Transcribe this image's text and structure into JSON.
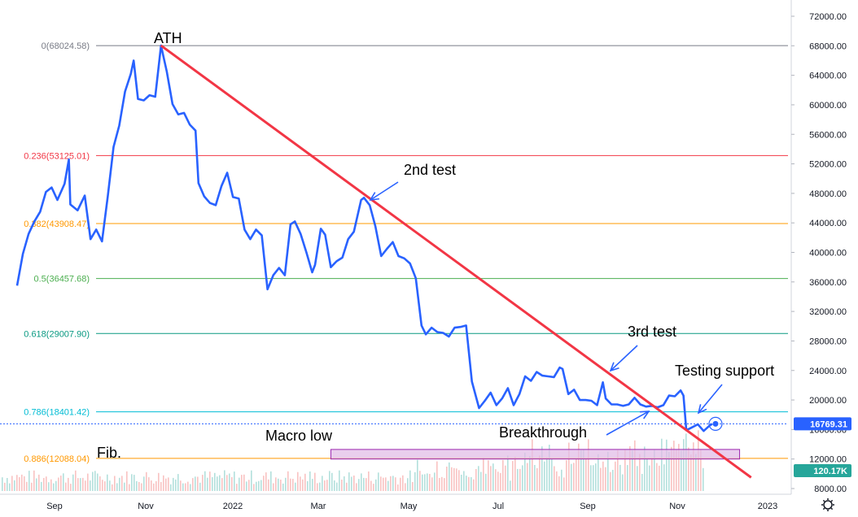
{
  "chart_data": {
    "type": "line",
    "symbol_unit": "USD",
    "y_axis": {
      "ticks": [
        "72000.00",
        "68000.00",
        "64000.00",
        "60000.00",
        "56000.00",
        "52000.00",
        "48000.00",
        "44000.00",
        "40000.00",
        "36000.00",
        "32000.00",
        "28000.00",
        "24000.00",
        "20000.00",
        "16000.00",
        "12000.00",
        "8000.00"
      ],
      "range": [
        7000,
        73500
      ]
    },
    "x_axis": {
      "ticks": [
        "Sep",
        "Nov",
        "2022",
        "Mar",
        "May",
        "Jul",
        "Sep",
        "Nov",
        "2023"
      ]
    },
    "fib_levels": [
      {
        "label": "0(68024.58)",
        "value": 68024.58,
        "color": "#787b86"
      },
      {
        "label": "0.236(53125.01)",
        "value": 53125.01,
        "color": "#f23645"
      },
      {
        "label": "0.382(43908.47)",
        "value": 43908.47,
        "color": "#ff9800"
      },
      {
        "label": "0.5(36457.68)",
        "value": 36457.68,
        "color": "#4caf50"
      },
      {
        "label": "0.618(29007.90)",
        "value": 29007.9,
        "color": "#089981"
      },
      {
        "label": "0.786(18401.42)",
        "value": 18401.42,
        "color": "#00bcd4"
      },
      {
        "label": "0.886(12088.04)",
        "value": 12088.04,
        "color": "#ff9800"
      }
    ],
    "series": [
      {
        "color": "#2962ff",
        "values": [
          [
            "2021-08-01",
            35500
          ],
          [
            "2021-08-05",
            39800
          ],
          [
            "2021-08-09",
            42500
          ],
          [
            "2021-08-13",
            44200
          ],
          [
            "2021-08-17",
            45500
          ],
          [
            "2021-08-21",
            48200
          ],
          [
            "2021-08-25",
            48800
          ],
          [
            "2021-08-29",
            47100
          ],
          [
            "2021-09-03",
            49300
          ],
          [
            "2021-09-06",
            52600
          ],
          [
            "2021-09-07",
            46500
          ],
          [
            "2021-09-12",
            45700
          ],
          [
            "2021-09-17",
            47700
          ],
          [
            "2021-09-21",
            41800
          ],
          [
            "2021-09-25",
            43100
          ],
          [
            "2021-09-29",
            41500
          ],
          [
            "2021-10-03",
            47600
          ],
          [
            "2021-10-07",
            54300
          ],
          [
            "2021-10-11",
            57200
          ],
          [
            "2021-10-15",
            61800
          ],
          [
            "2021-10-19",
            64200
          ],
          [
            "2021-10-21",
            66000
          ],
          [
            "2021-10-24",
            60800
          ],
          [
            "2021-10-28",
            60600
          ],
          [
            "2021-11-01",
            61300
          ],
          [
            "2021-11-05",
            61100
          ],
          [
            "2021-11-09",
            68024
          ],
          [
            "2021-11-13",
            64500
          ],
          [
            "2021-11-17",
            60100
          ],
          [
            "2021-11-21",
            58700
          ],
          [
            "2021-11-25",
            58900
          ],
          [
            "2021-11-29",
            57300
          ],
          [
            "2021-12-03",
            56500
          ],
          [
            "2021-12-05",
            49400
          ],
          [
            "2021-12-09",
            47600
          ],
          [
            "2021-12-13",
            46700
          ],
          [
            "2021-12-17",
            46400
          ],
          [
            "2021-12-21",
            49000
          ],
          [
            "2021-12-25",
            50800
          ],
          [
            "2021-12-29",
            47500
          ],
          [
            "2022-01-02",
            47300
          ],
          [
            "2022-01-06",
            43100
          ],
          [
            "2022-01-10",
            41800
          ],
          [
            "2022-01-14",
            43100
          ],
          [
            "2022-01-18",
            42300
          ],
          [
            "2022-01-22",
            35000
          ],
          [
            "2022-01-26",
            36900
          ],
          [
            "2022-01-30",
            37900
          ],
          [
            "2022-02-03",
            36900
          ],
          [
            "2022-02-07",
            43800
          ],
          [
            "2022-02-10",
            44200
          ],
          [
            "2022-02-14",
            42500
          ],
          [
            "2022-02-18",
            40000
          ],
          [
            "2022-02-22",
            37300
          ],
          [
            "2022-02-24",
            38300
          ],
          [
            "2022-02-28",
            43200
          ],
          [
            "2022-03-03",
            42400
          ],
          [
            "2022-03-07",
            38000
          ],
          [
            "2022-03-11",
            38800
          ],
          [
            "2022-03-15",
            39300
          ],
          [
            "2022-03-19",
            41800
          ],
          [
            "2022-03-23",
            42800
          ],
          [
            "2022-03-28",
            47100
          ],
          [
            "2022-03-30",
            47400
          ],
          [
            "2022-04-03",
            46400
          ],
          [
            "2022-04-07",
            43500
          ],
          [
            "2022-04-11",
            39500
          ],
          [
            "2022-04-15",
            40500
          ],
          [
            "2022-04-19",
            41400
          ],
          [
            "2022-04-23",
            39500
          ],
          [
            "2022-04-27",
            39200
          ],
          [
            "2022-05-01",
            38500
          ],
          [
            "2022-05-05",
            36500
          ],
          [
            "2022-05-09",
            30100
          ],
          [
            "2022-05-12",
            28900
          ],
          [
            "2022-05-16",
            29800
          ],
          [
            "2022-05-20",
            29200
          ],
          [
            "2022-05-24",
            29100
          ],
          [
            "2022-05-28",
            28600
          ],
          [
            "2022-06-01",
            29800
          ],
          [
            "2022-06-05",
            29900
          ],
          [
            "2022-06-09",
            30100
          ],
          [
            "2022-06-13",
            22500
          ],
          [
            "2022-06-18",
            18900
          ],
          [
            "2022-06-22",
            19900
          ],
          [
            "2022-06-26",
            21000
          ],
          [
            "2022-06-30",
            19300
          ],
          [
            "2022-07-04",
            20200
          ],
          [
            "2022-07-08",
            21600
          ],
          [
            "2022-07-12",
            19300
          ],
          [
            "2022-07-16",
            20800
          ],
          [
            "2022-07-20",
            23200
          ],
          [
            "2022-07-24",
            22600
          ],
          [
            "2022-07-28",
            23800
          ],
          [
            "2022-08-01",
            23300
          ],
          [
            "2022-08-05",
            23200
          ],
          [
            "2022-08-09",
            23100
          ],
          [
            "2022-08-13",
            24400
          ],
          [
            "2022-08-15",
            24200
          ],
          [
            "2022-08-19",
            20800
          ],
          [
            "2022-08-23",
            21400
          ],
          [
            "2022-08-27",
            20000
          ],
          [
            "2022-08-31",
            20000
          ],
          [
            "2022-09-04",
            19900
          ],
          [
            "2022-09-08",
            19300
          ],
          [
            "2022-09-12",
            22400
          ],
          [
            "2022-09-14",
            20200
          ],
          [
            "2022-09-18",
            19400
          ],
          [
            "2022-09-22",
            19400
          ],
          [
            "2022-09-26",
            19200
          ],
          [
            "2022-09-30",
            19400
          ],
          [
            "2022-10-04",
            20300
          ],
          [
            "2022-10-08",
            19400
          ],
          [
            "2022-10-12",
            19100
          ],
          [
            "2022-10-16",
            19200
          ],
          [
            "2022-10-20",
            19000
          ],
          [
            "2022-10-24",
            19300
          ],
          [
            "2022-10-28",
            20600
          ],
          [
            "2022-11-01",
            20500
          ],
          [
            "2022-11-05",
            21300
          ],
          [
            "2022-11-07",
            20600
          ],
          [
            "2022-11-09",
            15900
          ],
          [
            "2022-11-13",
            16300
          ],
          [
            "2022-11-17",
            16700
          ],
          [
            "2022-11-21",
            15800
          ],
          [
            "2022-11-25",
            16500
          ],
          [
            "2022-11-27",
            16769
          ]
        ]
      }
    ],
    "annotations": [
      {
        "text": "ATH"
      },
      {
        "text": "2nd test"
      },
      {
        "text": "3rd test"
      },
      {
        "text": "Testing support"
      },
      {
        "text": "Breakthrough"
      },
      {
        "text": "Macro low"
      },
      {
        "text": "Fib."
      }
    ],
    "macro_low_zone": {
      "from": 12000,
      "to": 13300,
      "start": "2022-03-07",
      "end": "2022-12-16",
      "color": "#e1bee7"
    },
    "trendline": {
      "from": [
        "2021-11-09",
        68024
      ],
      "to": [
        "2022-12-24",
        9500
      ],
      "color": "#f23645"
    },
    "last_price": {
      "label": "16769.31",
      "value": 16769.31,
      "color": "#2962ff"
    },
    "volume_label": {
      "label": "120.17K",
      "color": "#26a69a"
    },
    "grid": false
  }
}
